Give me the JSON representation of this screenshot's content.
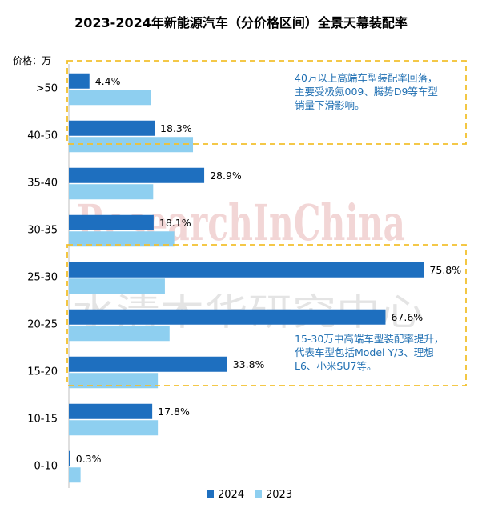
{
  "colors": {
    "s2024": "#1e6fbf",
    "s2023": "#8ecff0",
    "callout_border": "#f2c12e",
    "note_text": "#1f6fb2",
    "watermark_red": "#e7b4b4",
    "watermark_gray": "#d9d9d9"
  },
  "chart_data": {
    "type": "bar",
    "orientation": "horizontal",
    "title": "2023-2024年新能源汽车（分价格区间）全景天幕装配率",
    "ylabel": "价格：万",
    "categories": [
      ">50",
      "40-50",
      "35-40",
      "30-35",
      "25-30",
      "20-25",
      "15-20",
      "10-15",
      "0-10"
    ],
    "series": [
      {
        "name": "2024",
        "values": [
          4.4,
          18.3,
          28.9,
          18.1,
          75.8,
          67.6,
          33.8,
          17.8,
          0.3
        ],
        "labels": [
          "4.4%",
          "18.3%",
          "28.9%",
          "18.1%",
          "75.8%",
          "67.6%",
          "33.8%",
          "17.8%",
          "0.3%"
        ]
      },
      {
        "name": "2023",
        "values": [
          17.5,
          26.5,
          18.0,
          22.5,
          20.5,
          21.5,
          19.0,
          19.0,
          2.5
        ]
      }
    ],
    "xlim": [
      0,
      80
    ],
    "grid": false,
    "legend": "bottom-center",
    "annotations": [
      {
        "lines": [
          "40万以上高端车型装配率回落，",
          "主要受极氪009、腾势D9等车型",
          "销量下滑影响。"
        ]
      },
      {
        "lines": [
          "15-30万中高端车型装配率提升，",
          "代表车型包括Model Y/3、理想",
          "L6、小米SU7等。"
        ]
      }
    ],
    "watermark": {
      "latin": "ResearchInChina",
      "chinese": "水清木华研究中心"
    }
  }
}
